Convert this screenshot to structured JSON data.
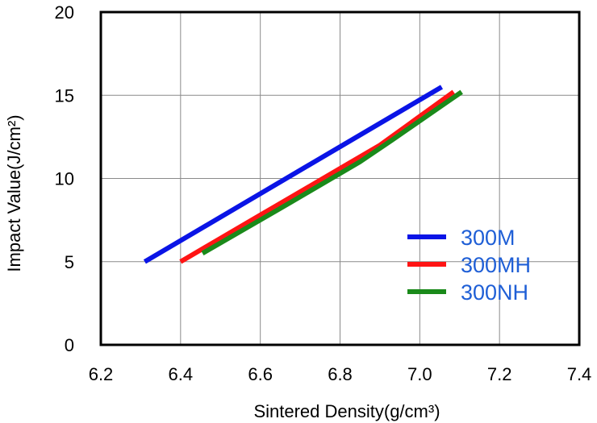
{
  "chart_data": {
    "type": "line",
    "title": "",
    "xlabel": "Sintered Density(g/cm³)",
    "ylabel": "Impact Value(J/cm²)",
    "xlim": [
      6.2,
      7.4
    ],
    "ylim": [
      0,
      20
    ],
    "xticks": [
      "6.2",
      "6.4",
      "6.6",
      "6.8",
      "7.0",
      "7.2",
      "7.4"
    ],
    "yticks": [
      "0",
      "5",
      "10",
      "15",
      "20"
    ],
    "grid": true,
    "legend_position": "right",
    "series": [
      {
        "name": "300M",
        "color": "#0a14e6",
        "x": [
          6.31,
          7.055
        ],
        "y": [
          5.0,
          15.5
        ]
      },
      {
        "name": "300MH",
        "color": "#ff1414",
        "x": [
          6.4,
          6.6,
          6.8,
          6.9,
          7.085
        ],
        "y": [
          5.0,
          7.8,
          10.6,
          12.0,
          15.2
        ]
      },
      {
        "name": "300NH",
        "color": "#1a8a1a",
        "x": [
          6.455,
          6.65,
          6.85,
          6.93,
          7.105
        ],
        "y": [
          5.5,
          8.2,
          11.0,
          12.3,
          15.2
        ]
      }
    ]
  }
}
